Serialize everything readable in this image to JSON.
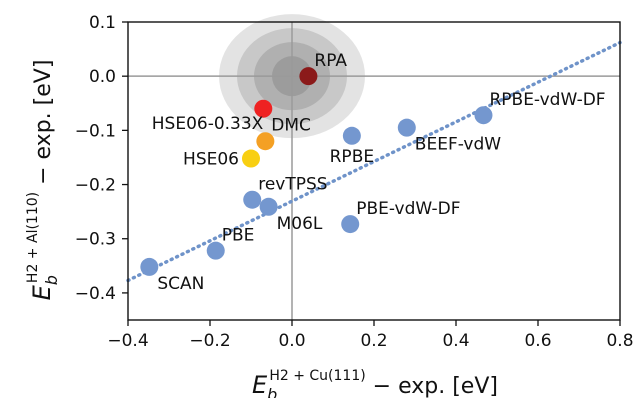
{
  "chart_data": {
    "type": "scatter",
    "xlim": [
      -0.4,
      0.8
    ],
    "ylim": [
      -0.45,
      0.1
    ],
    "x_ticks": [
      -0.4,
      -0.2,
      0.0,
      0.2,
      0.4,
      0.6,
      0.8
    ],
    "x_tick_labels": [
      "−0.4",
      "−0.2",
      "0.0",
      "0.2",
      "0.4",
      "0.6",
      "0.8"
    ],
    "y_ticks": [
      0.1,
      0.0,
      -0.1,
      -0.2,
      -0.3,
      -0.4
    ],
    "y_tick_labels": [
      "0.1",
      "0.0",
      "−0.1",
      "−0.2",
      "−0.3",
      "−0.4"
    ],
    "xlabel": {
      "base": "E",
      "sub": "b",
      "sup": "H2 + Cu(111)",
      "rest": " − exp.  [eV]"
    },
    "ylabel": {
      "base": "E",
      "sub": "b",
      "sup": "H2 + Al(110)",
      "rest": " − exp.  [eV]"
    },
    "zero_lines": true,
    "grid": false,
    "trend_line": {
      "style": "dotted",
      "color": "#6f93c9",
      "x": [
        -0.4,
        0.8
      ],
      "y": [
        -0.377,
        0.062
      ]
    },
    "uncertainty_ellipse": {
      "center": [
        0.0,
        0.0
      ],
      "color": "#808080"
    },
    "points": [
      {
        "name": "RPA",
        "x": 0.04,
        "y": 0.0,
        "color": "#8b1a1a",
        "label_pos": "above-right"
      },
      {
        "name": "DMC",
        "x": -0.07,
        "y": -0.06,
        "color": "#ee2222",
        "label_pos": "below-right"
      },
      {
        "name": "HSE06-0.33X",
        "x": -0.065,
        "y": -0.12,
        "color": "#f4a024",
        "label_pos": "above-left"
      },
      {
        "name": "HSE06",
        "x": -0.1,
        "y": -0.152,
        "color": "#f8cf12",
        "label_pos": "left"
      },
      {
        "name": "RPBE",
        "x": 0.146,
        "y": -0.11,
        "color": "#7497cf",
        "label_pos": "below"
      },
      {
        "name": "BEEF-vdW",
        "x": 0.28,
        "y": -0.095,
        "color": "#7497cf",
        "label_pos": "below-right"
      },
      {
        "name": "RPBE-vdW-DF",
        "x": 0.467,
        "y": -0.072,
        "color": "#7497cf",
        "label_pos": "above-right"
      },
      {
        "name": "revTPSS",
        "x": -0.097,
        "y": -0.228,
        "color": "#7497cf",
        "label_pos": "above-right"
      },
      {
        "name": "M06L",
        "x": -0.057,
        "y": -0.241,
        "color": "#7497cf",
        "label_pos": "below-right"
      },
      {
        "name": "PBE-vdW-DF",
        "x": 0.142,
        "y": -0.273,
        "color": "#7497cf",
        "label_pos": "above-right"
      },
      {
        "name": "PBE",
        "x": -0.186,
        "y": -0.322,
        "color": "#7497cf",
        "label_pos": "above-right"
      },
      {
        "name": "SCAN",
        "x": -0.348,
        "y": -0.352,
        "color": "#7497cf",
        "label_pos": "below-right"
      }
    ]
  }
}
